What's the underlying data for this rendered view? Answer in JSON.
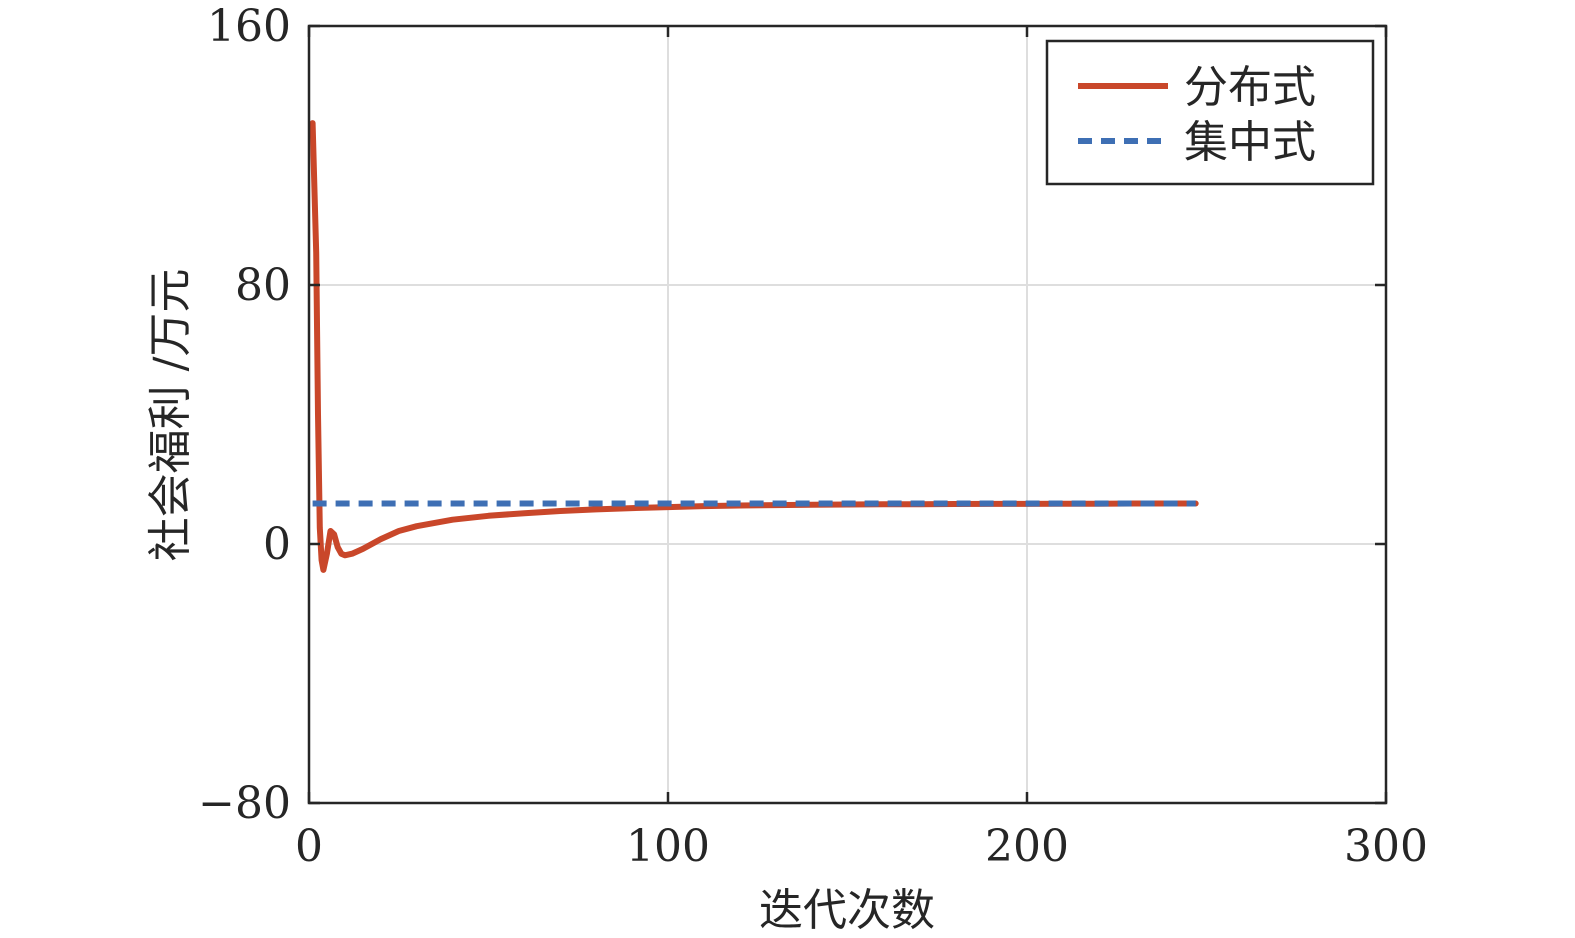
{
  "chart_data": {
    "type": "line",
    "title": "",
    "xlabel": "迭代次数",
    "ylabel": "社会福利 /万元",
    "xlim": [
      0,
      300
    ],
    "ylim": [
      -80,
      160
    ],
    "xticks": [
      0,
      100,
      200,
      300
    ],
    "xtick_labels": [
      "0",
      "100",
      "200",
      "300"
    ],
    "yticks": [
      -80,
      0,
      80,
      160
    ],
    "ytick_labels": [
      "−80",
      "0",
      "80",
      "160"
    ],
    "grid": true,
    "legend_position": "top-right",
    "series": [
      {
        "name": "分布式",
        "style": "solid",
        "color": "#c9472a",
        "x": [
          1,
          2,
          2.5,
          3,
          3.5,
          4,
          5,
          6,
          7,
          8,
          9,
          10,
          12,
          15,
          20,
          25,
          30,
          40,
          50,
          60,
          70,
          80,
          90,
          100,
          110,
          120,
          130,
          140,
          150,
          160,
          170,
          180,
          190,
          200,
          210,
          220,
          230,
          240,
          247
        ],
        "y": [
          130,
          90,
          40,
          5,
          -5,
          -8,
          -3,
          4,
          3,
          -1,
          -3,
          -3.5,
          -3,
          -1.5,
          1.5,
          4,
          5.5,
          7.5,
          8.7,
          9.5,
          10.2,
          10.7,
          11.1,
          11.4,
          11.7,
          11.9,
          12.0,
          12.1,
          12.2,
          12.25,
          12.3,
          12.35,
          12.4,
          12.4,
          12.45,
          12.45,
          12.5,
          12.5,
          12.5
        ]
      },
      {
        "name": "集中式",
        "style": "dashed",
        "color": "#3e6fb4",
        "x": [
          1,
          247
        ],
        "y": [
          12.5,
          12.5
        ]
      }
    ]
  }
}
